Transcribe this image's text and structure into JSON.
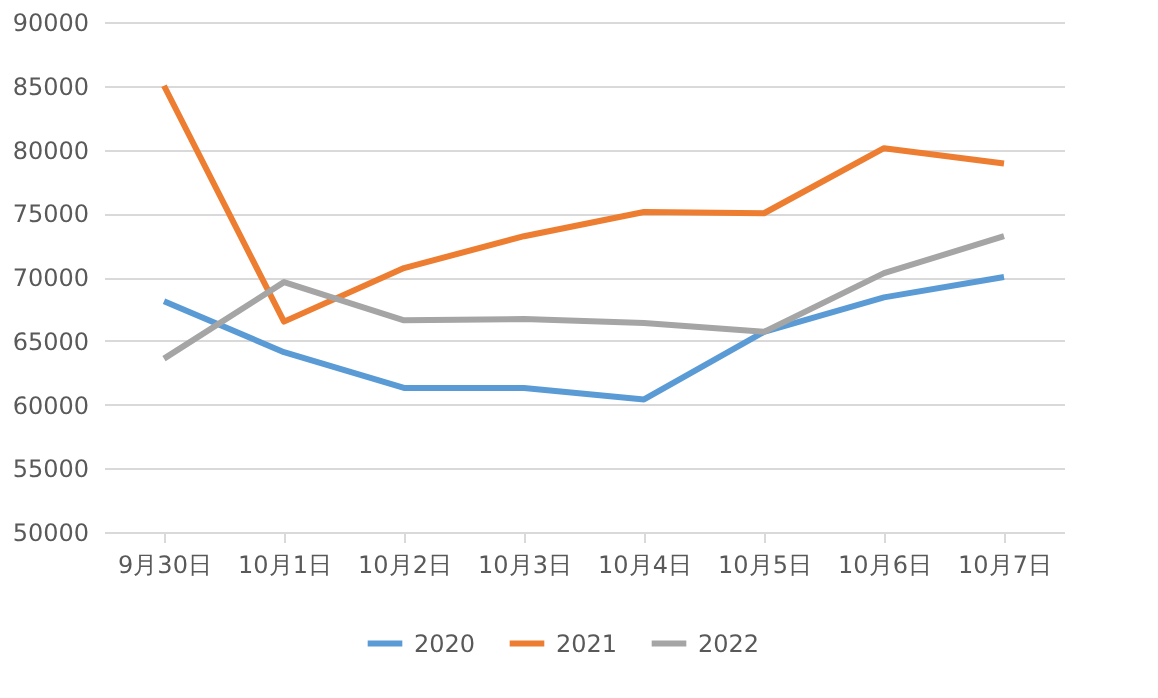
{
  "chart_data": {
    "type": "line",
    "categories": [
      "9月30日",
      "10月1日",
      "10月2日",
      "10月3日",
      "10月4日",
      "10月5日",
      "10月6日",
      "10月7日"
    ],
    "series": [
      {
        "name": "2020",
        "color": "#5b9bd5",
        "values": [
          68100,
          64100,
          61300,
          61300,
          60400,
          65700,
          68400,
          70000
        ]
      },
      {
        "name": "2021",
        "color": "#ed7d31",
        "values": [
          85000,
          66500,
          70700,
          73200,
          75100,
          75000,
          80100,
          78900
        ]
      },
      {
        "name": "2022",
        "color": "#a5a5a5",
        "values": [
          63600,
          69600,
          66600,
          66700,
          66400,
          65700,
          70300,
          73200
        ]
      }
    ],
    "ylim": [
      50000,
      90000
    ],
    "yticks": [
      50000,
      55000,
      60000,
      65000,
      70000,
      75000,
      80000,
      85000,
      90000
    ],
    "grid": "y",
    "legend": "bottom",
    "marker": "none",
    "line_style": "solid"
  }
}
